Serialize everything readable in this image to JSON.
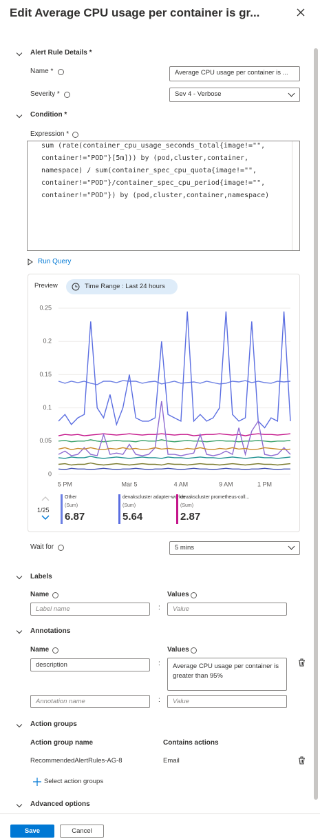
{
  "header": {
    "title": "Edit Average CPU usage per container is gr..."
  },
  "alert_rule_details": {
    "heading": "Alert Rule Details *",
    "name_label": "Name *",
    "name_value": "Average CPU usage per container is ...",
    "severity_label": "Severity *",
    "severity_value": "Sev 4 - Verbose"
  },
  "condition": {
    "heading": "Condition *",
    "expression_label": "Expression *",
    "expression_lines": [
      "sum (rate(container_cpu_usage_seconds_total{image!=\"\",",
      "container!=\"POD\"}[5m])) by (pod,cluster,container,",
      "namespace) / sum(container_spec_cpu_quota{image!=\"\",",
      "container!=\"POD\"}/container_spec_cpu_period{image!=\"\",",
      "container!=\"POD\"}) by (pod,cluster,container,namespace)"
    ],
    "run_query": "Run Query",
    "preview": "Preview",
    "time_range": "Time Range : Last 24 hours",
    "wait_for_label": "Wait for",
    "wait_for_value": "5 mins"
  },
  "chart_data": {
    "type": "line",
    "categories": [
      null,
      "5 PM",
      null,
      null,
      null,
      null,
      null,
      null,
      null,
      null,
      null,
      "Mar 5",
      null,
      null,
      null,
      null,
      null,
      null,
      null,
      "4 AM",
      null,
      null,
      null,
      null,
      null,
      null,
      "9 AM",
      null,
      null,
      null,
      null,
      null,
      "1 PM",
      null,
      null,
      null,
      null
    ],
    "ylim": [
      0,
      0.25
    ],
    "yticks": [
      0,
      0.05,
      0.1,
      0.15,
      0.2,
      0.25
    ],
    "grid": true,
    "series": [
      {
        "color": "#6b7fe3",
        "values": [
          0.14,
          0.137,
          0.14,
          0.138,
          0.14,
          0.137,
          0.135,
          0.14,
          0.14,
          0.138,
          0.141,
          0.14,
          0.14,
          0.137,
          0.139,
          0.14,
          0.136,
          0.138,
          0.14,
          0.137,
          0.138,
          0.139,
          0.137,
          0.14,
          0.138,
          0.136,
          0.137,
          0.14,
          0.139,
          0.141,
          0.138,
          0.14,
          0.138,
          0.137,
          0.14,
          0.139,
          0.14
        ]
      },
      {
        "color": "#5b6ee1",
        "values": [
          0.08,
          0.09,
          0.075,
          0.085,
          0.09,
          0.23,
          0.1,
          0.085,
          0.12,
          0.075,
          0.1,
          0.15,
          0.085,
          0.08,
          0.08,
          0.085,
          0.2,
          0.09,
          0.085,
          0.08,
          0.245,
          0.08,
          0.09,
          0.08,
          0.085,
          0.1,
          0.245,
          0.09,
          0.08,
          0.085,
          0.23,
          0.08,
          0.07,
          0.085,
          0.08,
          0.245,
          0.08
        ]
      },
      {
        "color": "#c4148a",
        "values": [
          0.058,
          0.06,
          0.059,
          0.06,
          0.058,
          0.059,
          0.06,
          0.061,
          0.06,
          0.059,
          0.06,
          0.061,
          0.06,
          0.059,
          0.06,
          0.06,
          0.061,
          0.06,
          0.059,
          0.06,
          0.06,
          0.058,
          0.059,
          0.06,
          0.06,
          0.061,
          0.06,
          0.059,
          0.06,
          0.058,
          0.06,
          0.061,
          0.06,
          0.06,
          0.059,
          0.06,
          0.061
        ]
      },
      {
        "color": "#3aa36b",
        "values": [
          0.05,
          0.051,
          0.049,
          0.05,
          0.05,
          0.052,
          0.05,
          0.049,
          0.05,
          0.051,
          0.05,
          0.05,
          0.049,
          0.051,
          0.05,
          0.05,
          0.052,
          0.05,
          0.049,
          0.05,
          0.051,
          0.05,
          0.05,
          0.049,
          0.05,
          0.051,
          0.05,
          0.05,
          0.049,
          0.05,
          0.05,
          0.051,
          0.05,
          0.049,
          0.05,
          0.05,
          0.051
        ]
      },
      {
        "color": "#8e6bd1",
        "values": [
          0.03,
          0.035,
          0.028,
          0.03,
          0.04,
          0.03,
          0.028,
          0.06,
          0.03,
          0.032,
          0.03,
          0.045,
          0.03,
          0.028,
          0.03,
          0.04,
          0.11,
          0.03,
          0.03,
          0.028,
          0.03,
          0.032,
          0.06,
          0.03,
          0.028,
          0.03,
          0.035,
          0.03,
          0.07,
          0.03,
          0.065,
          0.08,
          0.03,
          0.028,
          0.03,
          0.04,
          0.03
        ]
      },
      {
        "color": "#c98d2e",
        "values": [
          0.038,
          0.04,
          0.037,
          0.039,
          0.038,
          0.04,
          0.038,
          0.037,
          0.039,
          0.038,
          0.04,
          0.038,
          0.039,
          0.037,
          0.038,
          0.04,
          0.038,
          0.039,
          0.038,
          0.037,
          0.039,
          0.038,
          0.04,
          0.038,
          0.037,
          0.039,
          0.038,
          0.04,
          0.038,
          0.039,
          0.037,
          0.038,
          0.04,
          0.039,
          0.038,
          0.037,
          0.038
        ]
      },
      {
        "color": "#1c8f8f",
        "values": [
          0.025,
          0.024,
          0.026,
          0.025,
          0.025,
          0.027,
          0.025,
          0.024,
          0.025,
          0.026,
          0.025,
          0.024,
          0.025,
          0.026,
          0.025,
          0.025,
          0.024,
          0.026,
          0.025,
          0.025,
          0.024,
          0.025,
          0.026,
          0.025,
          0.025,
          0.024,
          0.025,
          0.026,
          0.025,
          0.024,
          0.025,
          0.026,
          0.025,
          0.025,
          0.024,
          0.025,
          0.026
        ]
      },
      {
        "color": "#7a7a2e",
        "values": [
          0.015,
          0.016,
          0.014,
          0.015,
          0.015,
          0.017,
          0.015,
          0.014,
          0.015,
          0.016,
          0.015,
          0.014,
          0.015,
          0.016,
          0.015,
          0.015,
          0.014,
          0.016,
          0.015,
          0.015,
          0.014,
          0.015,
          0.016,
          0.015,
          0.015,
          0.014,
          0.015,
          0.016,
          0.015,
          0.014,
          0.015,
          0.016,
          0.015,
          0.015,
          0.014,
          0.015,
          0.016
        ]
      },
      {
        "color": "#3b4bb0",
        "values": [
          0.008,
          0.007,
          0.009,
          0.008,
          0.008,
          0.007,
          0.008,
          0.009,
          0.008,
          0.007,
          0.008,
          0.008,
          0.009,
          0.008,
          0.007,
          0.008,
          0.008,
          0.009,
          0.008,
          0.007,
          0.008,
          0.009,
          0.008,
          0.008,
          0.007,
          0.008,
          0.009,
          0.008,
          0.008,
          0.007,
          0.008,
          0.008,
          0.009,
          0.008,
          0.007,
          0.008,
          0.008
        ]
      }
    ],
    "page": "1/25",
    "legend": [
      {
        "name": "Other",
        "aggregation": "(Sum)",
        "value": 6.87,
        "color": "#6b7fe3"
      },
      {
        "name": "devakscluster adapter-worker ...",
        "aggregation": "(Sum)",
        "value": 5.64,
        "color": "#5b6ee1"
      },
      {
        "name": "devakscluster prometheus-coll...",
        "aggregation": "(Sum)",
        "value": 2.87,
        "color": "#c4148a"
      }
    ]
  },
  "labels": {
    "heading": "Labels",
    "name_header": "Name",
    "values_header": "Values",
    "name_placeholder": "Label name",
    "value_placeholder": "Value",
    "separator": ":"
  },
  "annotations": {
    "heading": "Annotations",
    "name_header": "Name",
    "values_header": "Values",
    "row_name": "description",
    "row_value": "Average CPU usage per container is greater than 95%",
    "name_placeholder": "Annotation name",
    "value_placeholder": "Value",
    "separator": ":"
  },
  "action_groups": {
    "heading": "Action groups",
    "name_header": "Action group name",
    "actions_header": "Contains actions",
    "row_name": "RecommendedAlertRules-AG-8",
    "row_actions": "Email",
    "select": "Select action groups"
  },
  "advanced": {
    "heading": "Advanced options"
  },
  "footer": {
    "save": "Save",
    "cancel": "Cancel"
  }
}
